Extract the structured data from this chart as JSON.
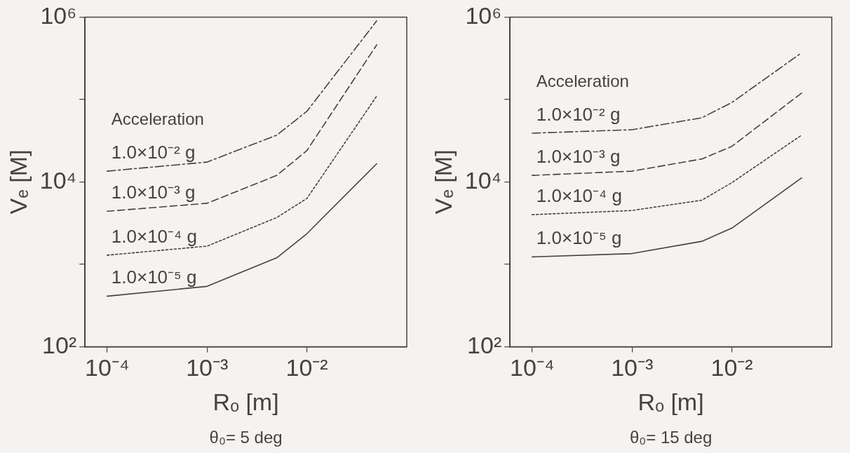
{
  "chart_data": [
    {
      "type": "line",
      "xlabel": "Rₒ [m]",
      "ylabel": "Vₑ [M]",
      "log": "xy",
      "grid": false,
      "legend": false,
      "marker": "none",
      "annotations": [
        "Acceleration",
        "θ₀= 5 deg"
      ],
      "xlim": [
        6e-05,
        0.1
      ],
      "xticks": [
        {
          "value": 0.0001,
          "label": "10⁻⁴"
        },
        {
          "value": 0.001,
          "label": "10⁻³"
        },
        {
          "value": 0.01,
          "label": "10⁻²"
        }
      ],
      "ylim": [
        100,
        1000000
      ],
      "yticks": [
        {
          "value": 100,
          "label": "10²"
        },
        {
          "value": 1000,
          "label": null
        },
        {
          "value": 10000,
          "label": "10⁴"
        },
        {
          "value": 100000,
          "label": null
        },
        {
          "value": 1000000,
          "label": "10⁶"
        }
      ],
      "x": [
        0.0001,
        0.001,
        0.005,
        0.01,
        0.05
      ],
      "series": [
        {
          "name": "1.0×10⁻² g",
          "color": "#4a4040",
          "line_style": "dashdot",
          "values": [
            13500,
            17400,
            37000,
            72000,
            900000
          ]
        },
        {
          "name": "1.0×10⁻³ g",
          "color": "#4a4040",
          "line_style": "dashed",
          "values": [
            4400,
            5500,
            12000,
            24000,
            460000
          ]
        },
        {
          "name": "1.0×10⁻⁴ g",
          "color": "#4a4040",
          "line_style": "dotted",
          "values": [
            1290,
            1660,
            3700,
            6300,
            110000
          ]
        },
        {
          "name": "1.0×10⁻⁵ g",
          "color": "#4a4040",
          "line_style": "solid",
          "values": [
            410,
            540,
            1200,
            2350,
            16600
          ]
        }
      ]
    },
    {
      "type": "line",
      "xlabel": "Rₒ [m]",
      "ylabel": "Vₑ [M]",
      "log": "xy",
      "grid": false,
      "legend": false,
      "marker": "none",
      "annotations": [
        "Acceleration",
        "θ₀= 15 deg"
      ],
      "xlim": [
        6e-05,
        0.1
      ],
      "xticks": [
        {
          "value": 0.0001,
          "label": "10⁻⁴"
        },
        {
          "value": 0.001,
          "label": "10⁻³"
        },
        {
          "value": 0.01,
          "label": "10⁻²"
        }
      ],
      "ylim": [
        100,
        1000000
      ],
      "yticks": [
        {
          "value": 100,
          "label": "10²"
        },
        {
          "value": 1000,
          "label": null
        },
        {
          "value": 10000,
          "label": "10⁴"
        },
        {
          "value": 100000,
          "label": null
        },
        {
          "value": 1000000,
          "label": "10⁶"
        }
      ],
      "x": [
        0.0001,
        0.001,
        0.005,
        0.01,
        0.05
      ],
      "series": [
        {
          "name": "1.0×10⁻² g",
          "color": "#4a4040",
          "line_style": "dashdot",
          "values": [
            39000,
            43000,
            60000,
            92000,
            370000
          ]
        },
        {
          "name": "1.0×10⁻³ g",
          "color": "#4a4040",
          "line_style": "dashed",
          "values": [
            12000,
            13500,
            19000,
            27000,
            120000
          ]
        },
        {
          "name": "1.0×10⁻⁴ g",
          "color": "#4a4040",
          "line_style": "dotted",
          "values": [
            4000,
            4500,
            6000,
            9800,
            37000
          ]
        },
        {
          "name": "1.0×10⁻⁵ g",
          "color": "#4a4040",
          "line_style": "solid",
          "values": [
            1230,
            1350,
            1900,
            2750,
            11200
          ]
        }
      ]
    }
  ]
}
